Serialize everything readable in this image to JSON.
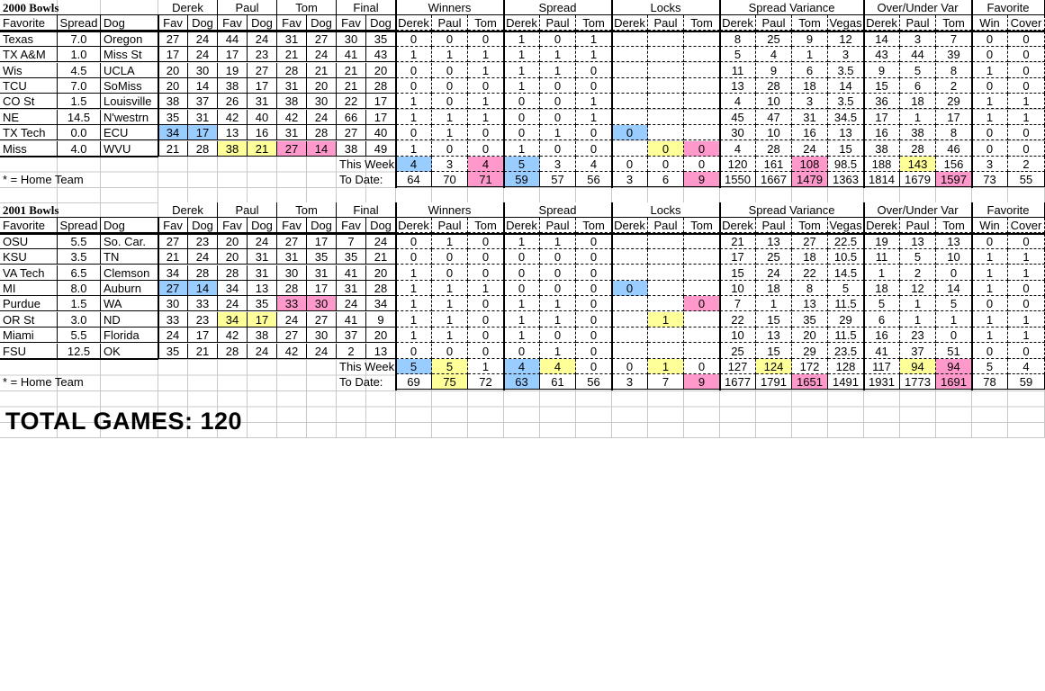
{
  "colors": {
    "blue": "#99ccff",
    "yellow": "#ffff99",
    "pink": "#ff99cc"
  },
  "group_headers": [
    "Derek",
    "Paul",
    "Tom",
    "Final",
    "Winners",
    "Spread",
    "Locks",
    "Spread Variance",
    "Over/Under Var",
    "Favorite"
  ],
  "col_headers": [
    "Favorite",
    "Spread",
    "Dog",
    "Fav",
    "Dog",
    "Fav",
    "Dog",
    "Fav",
    "Dog",
    "Fav",
    "Dog",
    "Derek",
    "Paul",
    "Tom",
    "Derek",
    "Paul",
    "Tom",
    "Derek",
    "Paul",
    "Tom",
    "Derek",
    "Paul",
    "Tom",
    "Vegas",
    "Derek",
    "Paul",
    "Tom",
    "Win",
    "Cover"
  ],
  "this_week_label": "This Week",
  "to_date_label": "To Date:",
  "note": "* = Home Team",
  "total_games": "TOTAL GAMES:  120",
  "sections": [
    {
      "title": "2000 Bowls",
      "rows": [
        [
          "Texas",
          "7.0",
          "Oregon",
          "27",
          "24",
          "44",
          "24",
          "31",
          "27",
          "30",
          "35",
          "0",
          "0",
          "0",
          "1",
          "0",
          "1",
          "",
          "",
          "",
          "8",
          "25",
          "9",
          "12",
          "14",
          "3",
          "7",
          "0",
          "0"
        ],
        [
          "TX A&M",
          "1.0",
          "Miss St",
          "17",
          "24",
          "17",
          "23",
          "21",
          "24",
          "41",
          "43",
          "1",
          "1",
          "1",
          "1",
          "1",
          "1",
          "",
          "",
          "",
          "5",
          "4",
          "1",
          "3",
          "43",
          "44",
          "39",
          "0",
          "0"
        ],
        [
          "Wis",
          "4.5",
          "UCLA",
          "20",
          "30",
          "19",
          "27",
          "28",
          "21",
          "21",
          "20",
          "0",
          "0",
          "1",
          "1",
          "1",
          "0",
          "",
          "",
          "",
          "11",
          "9",
          "6",
          "3.5",
          "9",
          "5",
          "8",
          "1",
          "0"
        ],
        [
          "TCU",
          "7.0",
          "SoMiss",
          "20",
          "14",
          "38",
          "17",
          "31",
          "20",
          "21",
          "28",
          "0",
          "0",
          "0",
          "1",
          "0",
          "0",
          "",
          "",
          "",
          "13",
          "28",
          "18",
          "14",
          "15",
          "6",
          "2",
          "0",
          "0"
        ],
        [
          "CO St",
          "1.5",
          "Louisville",
          "38",
          "37",
          "26",
          "31",
          "38",
          "30",
          "22",
          "17",
          "1",
          "0",
          "1",
          "0",
          "0",
          "1",
          "",
          "",
          "",
          "4",
          "10",
          "3",
          "3.5",
          "36",
          "18",
          "29",
          "1",
          "1"
        ],
        [
          "NE",
          "14.5",
          "N'westrn",
          "35",
          "31",
          "42",
          "40",
          "42",
          "24",
          "66",
          "17",
          "1",
          "1",
          "1",
          "0",
          "0",
          "1",
          "",
          "",
          "",
          "45",
          "47",
          "31",
          "34.5",
          "17",
          "1",
          "17",
          "1",
          "1"
        ],
        [
          "TX Tech",
          "0.0",
          "ECU",
          "34",
          "17",
          "13",
          "16",
          "31",
          "28",
          "27",
          "40",
          "0",
          "1",
          "0",
          "0",
          "1",
          "0",
          "0",
          "",
          "",
          "30",
          "10",
          "16",
          "13",
          "16",
          "38",
          "8",
          "0",
          "0"
        ],
        [
          "Miss",
          "4.0",
          "WVU",
          "21",
          "28",
          "38",
          "21",
          "27",
          "14",
          "38",
          "49",
          "1",
          "0",
          "0",
          "1",
          "0",
          "0",
          "",
          "0",
          "0",
          "4",
          "28",
          "24",
          "15",
          "38",
          "28",
          "46",
          "0",
          "0"
        ]
      ],
      "this_week": [
        "4",
        "3",
        "4",
        "5",
        "3",
        "4",
        "0",
        "0",
        "0",
        "120",
        "161",
        "108",
        "98.5",
        "188",
        "143",
        "156",
        "3",
        "2"
      ],
      "to_date": [
        "64",
        "70",
        "71",
        "59",
        "57",
        "56",
        "3",
        "6",
        "9",
        "1550",
        "1667",
        "1479",
        "1363",
        "1814",
        "1679",
        "1597",
        "73",
        "55"
      ],
      "highlights": [
        {
          "row": 6,
          "col": 3,
          "color": "blue"
        },
        {
          "row": 6,
          "col": 4,
          "color": "blue"
        },
        {
          "row": 7,
          "col": 5,
          "color": "yellow"
        },
        {
          "row": 7,
          "col": 6,
          "color": "yellow"
        },
        {
          "row": 7,
          "col": 7,
          "color": "pink"
        },
        {
          "row": 7,
          "col": 8,
          "color": "pink"
        },
        {
          "row": 6,
          "col": 17,
          "color": "blue"
        },
        {
          "row": 7,
          "col": 18,
          "color": "yellow"
        },
        {
          "row": 7,
          "col": 19,
          "color": "pink"
        }
      ],
      "this_week_highlights": [
        {
          "col": 11,
          "color": "blue"
        },
        {
          "col": 13,
          "color": "pink"
        },
        {
          "col": 14,
          "color": "blue"
        },
        {
          "col": 22,
          "color": "pink"
        },
        {
          "col": 25,
          "color": "yellow"
        }
      ],
      "to_date_highlights": [
        {
          "col": 13,
          "color": "pink"
        },
        {
          "col": 14,
          "color": "blue"
        },
        {
          "col": 19,
          "color": "pink"
        },
        {
          "col": 22,
          "color": "pink"
        },
        {
          "col": 26,
          "color": "pink"
        }
      ]
    },
    {
      "title": "2001 Bowls",
      "rows": [
        [
          "OSU",
          "5.5",
          "So. Car.",
          "27",
          "23",
          "20",
          "24",
          "27",
          "17",
          "7",
          "24",
          "0",
          "1",
          "0",
          "1",
          "1",
          "0",
          "",
          "",
          "",
          "21",
          "13",
          "27",
          "22.5",
          "19",
          "13",
          "13",
          "0",
          "0"
        ],
        [
          "KSU",
          "3.5",
          "TN",
          "21",
          "24",
          "20",
          "31",
          "31",
          "35",
          "35",
          "21",
          "0",
          "0",
          "0",
          "0",
          "0",
          "0",
          "",
          "",
          "",
          "17",
          "25",
          "18",
          "10.5",
          "11",
          "5",
          "10",
          "1",
          "1"
        ],
        [
          "VA Tech",
          "6.5",
          "Clemson",
          "34",
          "28",
          "28",
          "31",
          "30",
          "31",
          "41",
          "20",
          "1",
          "0",
          "0",
          "0",
          "0",
          "0",
          "",
          "",
          "",
          "15",
          "24",
          "22",
          "14.5",
          "1",
          "2",
          "0",
          "1",
          "1"
        ],
        [
          "MI",
          "8.0",
          "Auburn",
          "27",
          "14",
          "34",
          "13",
          "28",
          "17",
          "31",
          "28",
          "1",
          "1",
          "1",
          "0",
          "0",
          "0",
          "0",
          "",
          "",
          "10",
          "18",
          "8",
          "5",
          "18",
          "12",
          "14",
          "1",
          "0"
        ],
        [
          "Purdue",
          "1.5",
          "WA",
          "30",
          "33",
          "24",
          "35",
          "33",
          "30",
          "24",
          "34",
          "1",
          "1",
          "0",
          "1",
          "1",
          "0",
          "",
          "",
          "0",
          "7",
          "1",
          "13",
          "11.5",
          "5",
          "1",
          "5",
          "0",
          "0"
        ],
        [
          "OR St",
          "3.0",
          "ND",
          "33",
          "23",
          "34",
          "17",
          "24",
          "27",
          "41",
          "9",
          "1",
          "1",
          "0",
          "1",
          "1",
          "0",
          "",
          "1",
          "",
          "22",
          "15",
          "35",
          "29",
          "6",
          "1",
          "1",
          "1",
          "1"
        ],
        [
          "Miami",
          "5.5",
          "Florida",
          "24",
          "17",
          "42",
          "38",
          "27",
          "30",
          "37",
          "20",
          "1",
          "1",
          "0",
          "1",
          "0",
          "0",
          "",
          "",
          "",
          "10",
          "13",
          "20",
          "11.5",
          "16",
          "23",
          "0",
          "1",
          "1"
        ],
        [
          "FSU",
          "12.5",
          "OK",
          "35",
          "21",
          "28",
          "24",
          "42",
          "24",
          "2",
          "13",
          "0",
          "0",
          "0",
          "0",
          "1",
          "0",
          "",
          "",
          "",
          "25",
          "15",
          "29",
          "23.5",
          "41",
          "37",
          "51",
          "0",
          "0"
        ]
      ],
      "this_week": [
        "5",
        "5",
        "1",
        "4",
        "4",
        "0",
        "0",
        "1",
        "0",
        "127",
        "124",
        "172",
        "128",
        "117",
        "94",
        "94",
        "5",
        "4"
      ],
      "to_date": [
        "69",
        "75",
        "72",
        "63",
        "61",
        "56",
        "3",
        "7",
        "9",
        "1677",
        "1791",
        "1651",
        "1491",
        "1931",
        "1773",
        "1691",
        "78",
        "59"
      ],
      "highlights": [
        {
          "row": 3,
          "col": 3,
          "color": "blue"
        },
        {
          "row": 3,
          "col": 4,
          "color": "blue"
        },
        {
          "row": 4,
          "col": 7,
          "color": "pink"
        },
        {
          "row": 4,
          "col": 8,
          "color": "pink"
        },
        {
          "row": 5,
          "col": 5,
          "color": "yellow"
        },
        {
          "row": 5,
          "col": 6,
          "color": "yellow"
        },
        {
          "row": 3,
          "col": 17,
          "color": "blue"
        },
        {
          "row": 4,
          "col": 19,
          "color": "pink"
        },
        {
          "row": 5,
          "col": 18,
          "color": "yellow"
        }
      ],
      "this_week_highlights": [
        {
          "col": 11,
          "color": "blue"
        },
        {
          "col": 12,
          "color": "yellow"
        },
        {
          "col": 14,
          "color": "blue"
        },
        {
          "col": 15,
          "color": "yellow"
        },
        {
          "col": 18,
          "color": "yellow"
        },
        {
          "col": 21,
          "color": "yellow"
        },
        {
          "col": 25,
          "color": "yellow"
        },
        {
          "col": 26,
          "color": "pink"
        }
      ],
      "to_date_highlights": [
        {
          "col": 12,
          "color": "yellow"
        },
        {
          "col": 14,
          "color": "blue"
        },
        {
          "col": 19,
          "color": "pink"
        },
        {
          "col": 22,
          "color": "pink"
        },
        {
          "col": 26,
          "color": "pink"
        }
      ]
    }
  ]
}
